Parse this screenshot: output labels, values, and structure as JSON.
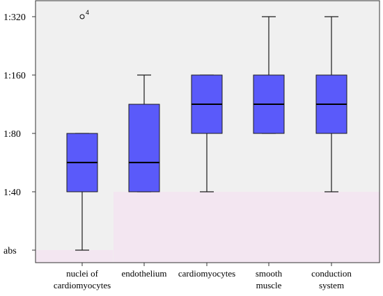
{
  "chart_data": {
    "type": "box",
    "title": "",
    "xlabel": "",
    "ylabel": "",
    "y_scale": "log2",
    "y_ticks": [
      {
        "value": 0,
        "label": "abs"
      },
      {
        "value": 40,
        "label": "1:40"
      },
      {
        "value": 80,
        "label": "1:80"
      },
      {
        "value": 160,
        "label": "1:160"
      },
      {
        "value": 320,
        "label": "1:320"
      }
    ],
    "categories": [
      {
        "label_lines": [
          "nuclei of",
          "cardiomyocytes"
        ]
      },
      {
        "label_lines": [
          "endothelium"
        ]
      },
      {
        "label_lines": [
          "cardiomyocytes"
        ]
      },
      {
        "label_lines": [
          "smooth",
          "muscle"
        ]
      },
      {
        "label_lines": [
          "conduction",
          "system"
        ]
      }
    ],
    "boxes": [
      {
        "whisker_low": 0,
        "q1": 40,
        "median": 56.6,
        "q3": 80,
        "whisker_high": 80,
        "outliers": [
          {
            "value": 320,
            "label": "4"
          }
        ]
      },
      {
        "whisker_low": 40,
        "q1": 40,
        "median": 56.6,
        "q3": 113.1,
        "whisker_high": 160,
        "outliers": []
      },
      {
        "whisker_low": 40,
        "q1": 80,
        "median": 113.1,
        "q3": 160,
        "whisker_high": 160,
        "outliers": []
      },
      {
        "whisker_low": 80,
        "q1": 80,
        "median": 113.1,
        "q3": 160,
        "whisker_high": 320,
        "outliers": []
      },
      {
        "whisker_low": 40,
        "q1": 80,
        "median": 113.1,
        "q3": 160,
        "whisker_high": 320,
        "outliers": []
      }
    ],
    "background_regions": [
      {
        "from_category": 0,
        "to_category": 0,
        "y_low": 0,
        "y_high": 0,
        "color": "#f3e6f1"
      },
      {
        "from_category": 1,
        "to_category": 4,
        "y_low": 0,
        "y_high": 40,
        "color": "#f3e6f1"
      }
    ],
    "colors": {
      "plot_background": "#f0f0f0",
      "box_fill": "#5a5afa",
      "box_stroke": "#1c1c1c"
    },
    "grid": false,
    "legend": "none"
  }
}
